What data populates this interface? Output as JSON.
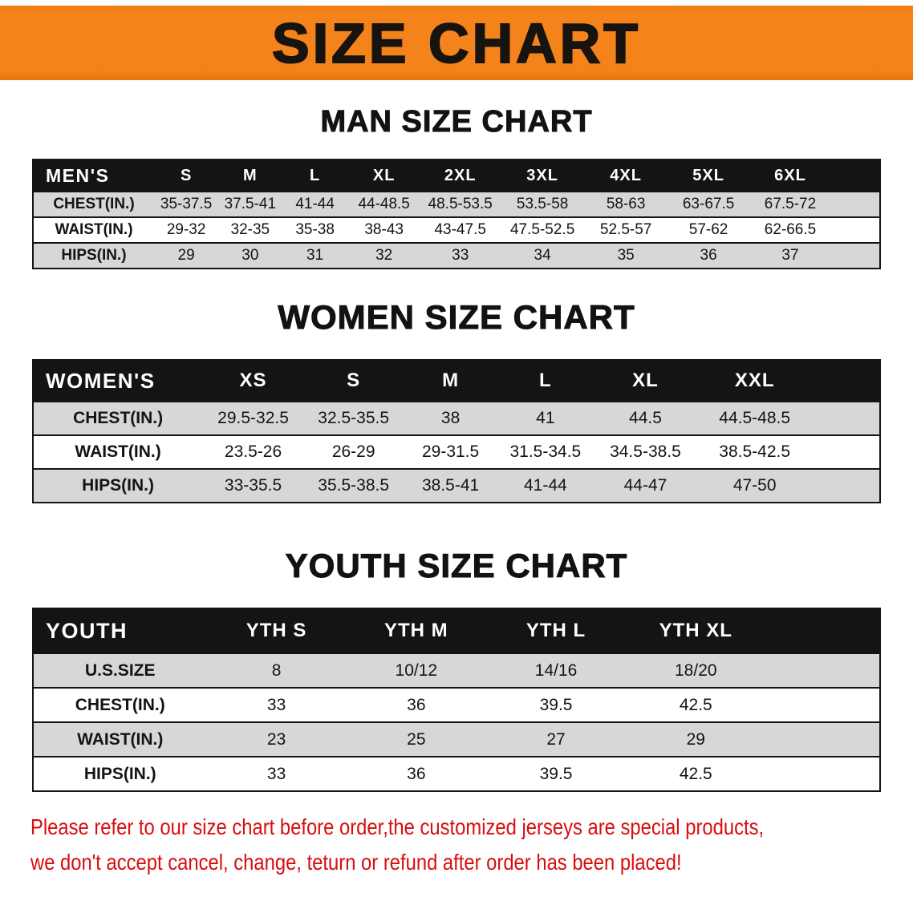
{
  "banner": {
    "title": "SIZE CHART"
  },
  "colors": {
    "banner_bg": "#f5831c",
    "header_bg": "#141414",
    "row_alt": "#d7d7d7",
    "footer_text": "#d90d0d"
  },
  "chart_data": [
    {
      "type": "table",
      "title": "MAN SIZE CHART",
      "corner_label": "MEN'S",
      "columns": [
        "S",
        "M",
        "L",
        "XL",
        "2XL",
        "3XL",
        "4XL",
        "5XL",
        "6XL"
      ],
      "rows": [
        {
          "label": "CHEST(IN.)",
          "values": [
            "35-37.5",
            "37.5-41",
            "41-44",
            "44-48.5",
            "48.5-53.5",
            "53.5-58",
            "58-63",
            "63-67.5",
            "67.5-72"
          ]
        },
        {
          "label": "WAIST(IN.)",
          "values": [
            "29-32",
            "32-35",
            "35-38",
            "38-43",
            "43-47.5",
            "47.5-52.5",
            "52.5-57",
            "57-62",
            "62-66.5"
          ]
        },
        {
          "label": "HIPS(IN.)",
          "values": [
            "29",
            "30",
            "31",
            "32",
            "33",
            "34",
            "35",
            "36",
            "37"
          ]
        }
      ]
    },
    {
      "type": "table",
      "title": "WOMEN SIZE CHART",
      "corner_label": "WOMEN'S",
      "columns": [
        "XS",
        "S",
        "M",
        "L",
        "XL",
        "XXL"
      ],
      "rows": [
        {
          "label": "CHEST(IN.)",
          "values": [
            "29.5-32.5",
            "32.5-35.5",
            "38",
            "41",
            "44.5",
            "44.5-48.5"
          ]
        },
        {
          "label": "WAIST(IN.)",
          "values": [
            "23.5-26",
            "26-29",
            "29-31.5",
            "31.5-34.5",
            "34.5-38.5",
            "38.5-42.5"
          ]
        },
        {
          "label": "HIPS(IN.)",
          "values": [
            "33-35.5",
            "35.5-38.5",
            "38.5-41",
            "41-44",
            "44-47",
            "47-50"
          ]
        }
      ]
    },
    {
      "type": "table",
      "title": "YOUTH SIZE CHART",
      "corner_label": "YOUTH",
      "columns": [
        "YTH S",
        "YTH M",
        "YTH L",
        "YTH XL"
      ],
      "rows": [
        {
          "label": "U.S.SIZE",
          "values": [
            "8",
            "10/12",
            "14/16",
            "18/20"
          ]
        },
        {
          "label": "CHEST(IN.)",
          "values": [
            "33",
            "36",
            "39.5",
            "42.5"
          ]
        },
        {
          "label": "WAIST(IN.)",
          "values": [
            "23",
            "25",
            "27",
            "29"
          ]
        },
        {
          "label": "HIPS(IN.)",
          "values": [
            "33",
            "36",
            "39.5",
            "42.5"
          ]
        }
      ]
    }
  ],
  "footer": {
    "line1": "Please refer to our size chart before order,the customized jerseys are special products,",
    "line2": "we don't accept cancel, change, teturn or refund after order has been placed!"
  }
}
